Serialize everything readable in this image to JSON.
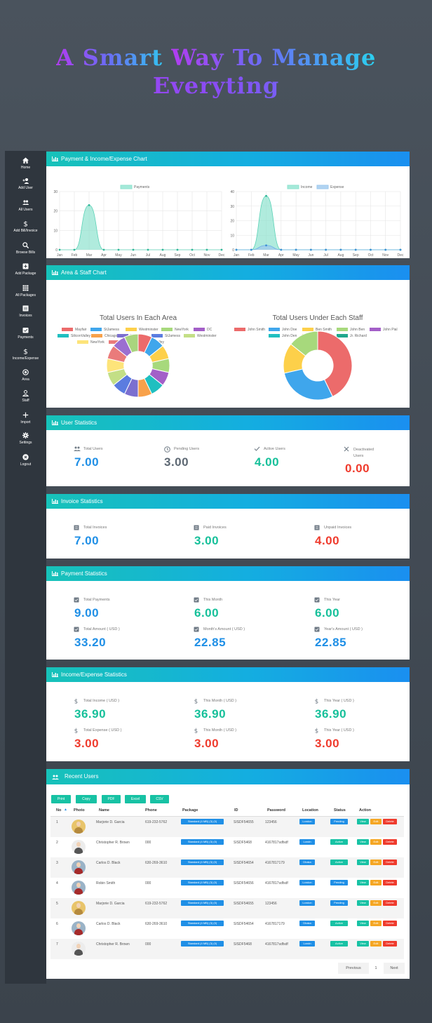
{
  "hero": {
    "line1_a": "A Smart ",
    "line1_b": "Way To Manage",
    "line2": "Everyting"
  },
  "sidebar": {
    "items": [
      {
        "label": "Home",
        "icon": "home-icon"
      },
      {
        "label": "Add User",
        "icon": "add-user-icon"
      },
      {
        "label": "All Users",
        "icon": "users-icon"
      },
      {
        "label": "Add Bill/Invoice",
        "icon": "dollar-icon"
      },
      {
        "label": "Browse Bills",
        "icon": "search-icon"
      },
      {
        "label": "Add Package",
        "icon": "add-box-icon"
      },
      {
        "label": "All Packages",
        "icon": "grid-icon"
      },
      {
        "label": "Invoices",
        "icon": "list-icon"
      },
      {
        "label": "Payments",
        "icon": "check-box-icon"
      },
      {
        "label": "Income/Expense",
        "icon": "dollar-icon"
      },
      {
        "label": "Area",
        "icon": "target-icon"
      },
      {
        "label": "Staff",
        "icon": "person-icon"
      },
      {
        "label": "Import",
        "icon": "plus-icon"
      },
      {
        "label": "Settings",
        "icon": "gear-icon"
      },
      {
        "label": "Logout",
        "icon": "close-circle-icon"
      }
    ]
  },
  "cards": {
    "payment_chart": "Payment & Income/Expense Chart",
    "area_staff": "Area & Staff Chart",
    "user_stats": "User Statistics",
    "invoice_stats": "Invoice Statistics",
    "payment_stats": "Payment Statistics",
    "income_stats": "Income/Expense Statistics",
    "recent_users": "Recent Users"
  },
  "chart_data": [
    {
      "type": "area",
      "x": [
        "Jan",
        "Feb",
        "Mar",
        "Apr",
        "May",
        "Jun",
        "Jul",
        "Aug",
        "Sep",
        "Oct",
        "Nov",
        "Dec"
      ],
      "ylim": [
        0,
        30
      ],
      "yticks": [
        0,
        10,
        20,
        30
      ],
      "series": [
        {
          "name": "Payments",
          "values": [
            0,
            0,
            23,
            0,
            0,
            0,
            0,
            0,
            0,
            0,
            0,
            0
          ],
          "color": "#8fe3cf"
        }
      ]
    },
    {
      "type": "area",
      "x": [
        "Jan",
        "Feb",
        "Mar",
        "Apr",
        "May",
        "Jun",
        "Jul",
        "Aug",
        "Sep",
        "Oct",
        "Nov",
        "Dec"
      ],
      "ylim": [
        0,
        40
      ],
      "yticks": [
        0,
        10,
        20,
        30,
        40
      ],
      "series": [
        {
          "name": "Income",
          "values": [
            0,
            0,
            37,
            0,
            0,
            0,
            0,
            0,
            0,
            0,
            0,
            0
          ],
          "color": "#8fe3cf"
        },
        {
          "name": "Expense",
          "values": [
            0,
            0,
            3,
            0,
            0,
            0,
            0,
            0,
            0,
            0,
            0,
            0
          ],
          "color": "#9ec8ee"
        }
      ]
    },
    {
      "type": "pie",
      "title": "Total Users In Each Area",
      "labels": [
        "Mayfair",
        "StJamess",
        "Westminster",
        "NewYork",
        "DC",
        "SiliconValley",
        "Chicago",
        "Mayfair",
        "StJamess",
        "Westminster",
        "NewYork",
        "DC",
        "SiliconValley",
        "Chicago"
      ],
      "values": [
        1,
        1,
        1,
        1,
        1,
        1,
        1,
        1,
        1,
        1,
        1,
        1,
        1,
        1
      ],
      "colors": [
        "#ec6b6b",
        "#3fa6ec",
        "#fdd04a",
        "#a7d97c",
        "#a35fc8",
        "#1fbfc0",
        "#f8a14a",
        "#7b6fd0",
        "#5b7ce0",
        "#c3df86",
        "#fde47a",
        "#ea7b7b",
        "#9b6fd0",
        "#a9d57e"
      ]
    },
    {
      "type": "pie",
      "title": "Total Users Under Each Staff",
      "labels": [
        "John Smith",
        "John Doe",
        "Ben Smith",
        "John Ben",
        "John Pial",
        "John Den",
        "J. Danny",
        "Jr. Richard"
      ],
      "values": [
        3,
        2,
        1,
        1,
        0,
        0,
        0,
        0
      ],
      "colors": [
        "#ec6b6b",
        "#3fa6ec",
        "#fdd04a",
        "#a7d97c",
        "#a35fc8",
        "#1fbfc0",
        "#f8a14a",
        "#1fa88d"
      ]
    }
  ],
  "user_stats": [
    {
      "label": "Total Users",
      "value": "7.00",
      "icon": "users-icon"
    },
    {
      "label": "Pending Users",
      "value": "3.00",
      "icon": "clock-icon"
    },
    {
      "label": "Active Users",
      "value": "4.00",
      "icon": "check-icon"
    },
    {
      "label": "Deactivated Users",
      "value": "0.00",
      "icon": "close-icon"
    }
  ],
  "invoice_stats": [
    {
      "label": "Total Invoices",
      "value": "7.00"
    },
    {
      "label": "Paid Invoices",
      "value": "3.00"
    },
    {
      "label": "Unpaid Invoices",
      "value": "4.00"
    }
  ],
  "payment_stats": [
    {
      "label": "Total Payments",
      "value": "9.00"
    },
    {
      "label": "This Month",
      "value": "6.00"
    },
    {
      "label": "This Year",
      "value": "6.00"
    },
    {
      "label": "Total Amount ( USD )",
      "value": "33.20"
    },
    {
      "label": "Month's Amount ( USD )",
      "value": "22.85"
    },
    {
      "label": "Year's Amount ( USD )",
      "value": "22.85"
    }
  ],
  "income_stats": [
    {
      "label": "Total Income ( USD )",
      "value": "36.90"
    },
    {
      "label": "This Month ( USD )",
      "value": "36.90"
    },
    {
      "label": "This Year ( USD )",
      "value": "36.90"
    },
    {
      "label": "Total Expense ( USD )",
      "value": "3.00"
    },
    {
      "label": "This Month ( USD )",
      "value": "3.00"
    },
    {
      "label": "This Year ( USD )",
      "value": "3.00"
    }
  ],
  "table": {
    "buttons": [
      "Print",
      "Copy",
      "PDF",
      "Excel",
      "CSV"
    ],
    "headers": [
      "No",
      "Photo",
      "Name",
      "Phone",
      "Package",
      "ID",
      "Password",
      "Location",
      "Status",
      "Action"
    ],
    "actions": [
      "View",
      "Edit",
      "Delete"
    ],
    "rows": [
      {
        "no": "1",
        "name": "Marjorie D. Garcia",
        "phone": "619-232-5762",
        "package": "Standard (4 MB) (3) (0)",
        "id": "SISDF54655",
        "password": "123456",
        "location": "London",
        "status": "Pending"
      },
      {
        "no": "2",
        "name": "Christopher R. Brown",
        "phone": "000",
        "package": "Standard (4 MB) (3) (0)",
        "id": "SISDF5468",
        "password": "4167817sdfsdf",
        "location": "Londn",
        "status": "Active"
      },
      {
        "no": "3",
        "name": "Carlos D. Black",
        "phone": "630-269-3610",
        "package": "Standard (4 MB) (3) (0)",
        "id": "SISDF54654",
        "password": "4167817179",
        "location": "Dhaka",
        "status": "Active"
      },
      {
        "no": "4",
        "name": "Robin Smith",
        "phone": "000",
        "package": "Standard (4 MB) (3) (0)",
        "id": "SISDF54656",
        "password": "4167817sdfsdf",
        "location": "London",
        "status": "Pending"
      },
      {
        "no": "5",
        "name": "Marjorie D. Garcia",
        "phone": "619-232-5762",
        "package": "Standard (4 MB) (3) (0)",
        "id": "SISDF54655",
        "password": "123456",
        "location": "London",
        "status": "Pending"
      },
      {
        "no": "6",
        "name": "Carlos D. Black",
        "phone": "630-269-3610",
        "package": "Standard (4 MB) (3) (0)",
        "id": "SISDF54654",
        "password": "4167817179",
        "location": "Dhaka",
        "status": "Active"
      },
      {
        "no": "7",
        "name": "Christopher R. Brown",
        "phone": "000",
        "package": "Standard (4 MB) (3) (0)",
        "id": "SISDF5468",
        "password": "4167817sdfsdf",
        "location": "Londn",
        "status": "Active"
      }
    ],
    "pagination": {
      "prev": "Previous",
      "page": "1",
      "next": "Next"
    }
  },
  "colors": {
    "accent": "#14aee0",
    "teal": "#17c2a4",
    "blue": "#1f8fe6",
    "green": "#16c09a",
    "red": "#ef3b2d",
    "orange": "#f5a623",
    "status_pending": "#1f8fe6",
    "status_active": "#17c2a4"
  }
}
